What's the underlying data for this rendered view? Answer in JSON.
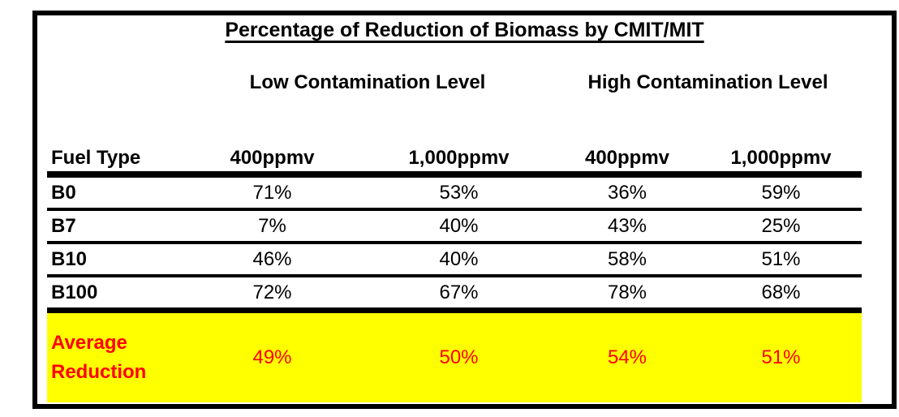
{
  "chart_data": {
    "type": "table",
    "title": "Percentage of Reduction of Biomass by CMIT/MIT",
    "group_headers": [
      "Low Contamination Level",
      "High Contamination Level"
    ],
    "header": {
      "fuel_type": "Fuel Type",
      "columns": [
        "400ppmv",
        "1,000ppmv",
        "400ppmv",
        "1,000ppmv"
      ]
    },
    "rows": [
      {
        "label": "B0",
        "values": [
          "71%",
          "53%",
          "36%",
          "59%"
        ]
      },
      {
        "label": "B7",
        "values": [
          "7%",
          "40%",
          "43%",
          "25%"
        ]
      },
      {
        "label": "B10",
        "values": [
          "46%",
          "40%",
          "58%",
          "51%"
        ]
      },
      {
        "label": "B100",
        "values": [
          "72%",
          "67%",
          "78%",
          "68%"
        ]
      }
    ],
    "average_row": {
      "label": "Average Reduction",
      "values": [
        "49%",
        "50%",
        "54%",
        "51%"
      ]
    },
    "colors": {
      "highlight_background": "#FFFF00",
      "highlight_text": "#FF0000",
      "border": "#000000",
      "text": "#000000"
    },
    "layout": {
      "grid": "horizontal rules only",
      "highlight_row": "Average Reduction"
    }
  }
}
